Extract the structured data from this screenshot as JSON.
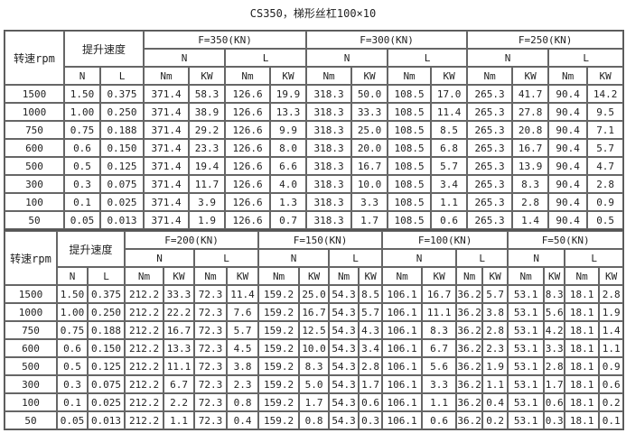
{
  "title": "CS350，梯形丝杠100×10",
  "header": {
    "rpm": "转速rpm",
    "speed": "提升速度",
    "N": "N",
    "L": "L",
    "Nm": "Nm",
    "KW": "KW"
  },
  "tables": [
    {
      "groups": [
        "F=350(KN)",
        "F=300(KN)",
        "F=250(KN)"
      ],
      "rows": [
        [
          "1500",
          "1.50",
          "0.375",
          "371.4",
          "58.3",
          "126.6",
          "19.9",
          "318.3",
          "50.0",
          "108.5",
          "17.0",
          "265.3",
          "41.7",
          "90.4",
          "14.2"
        ],
        [
          "1000",
          "1.00",
          "0.250",
          "371.4",
          "38.9",
          "126.6",
          "13.3",
          "318.3",
          "33.3",
          "108.5",
          "11.4",
          "265.3",
          "27.8",
          "90.4",
          "9.5"
        ],
        [
          "750",
          "0.75",
          "0.188",
          "371.4",
          "29.2",
          "126.6",
          "9.9",
          "318.3",
          "25.0",
          "108.5",
          "8.5",
          "265.3",
          "20.8",
          "90.4",
          "7.1"
        ],
        [
          "600",
          "0.6",
          "0.150",
          "371.4",
          "23.3",
          "126.6",
          "8.0",
          "318.3",
          "20.0",
          "108.5",
          "6.8",
          "265.3",
          "16.7",
          "90.4",
          "5.7"
        ],
        [
          "500",
          "0.5",
          "0.125",
          "371.4",
          "19.4",
          "126.6",
          "6.6",
          "318.3",
          "16.7",
          "108.5",
          "5.7",
          "265.3",
          "13.9",
          "90.4",
          "4.7"
        ],
        [
          "300",
          "0.3",
          "0.075",
          "371.4",
          "11.7",
          "126.6",
          "4.0",
          "318.3",
          "10.0",
          "108.5",
          "3.4",
          "265.3",
          "8.3",
          "90.4",
          "2.8"
        ],
        [
          "100",
          "0.1",
          "0.025",
          "371.4",
          "3.9",
          "126.6",
          "1.3",
          "318.3",
          "3.3",
          "108.5",
          "1.1",
          "265.3",
          "2.8",
          "90.4",
          "0.9"
        ],
        [
          "50",
          "0.05",
          "0.013",
          "371.4",
          "1.9",
          "126.6",
          "0.7",
          "318.3",
          "1.7",
          "108.5",
          "0.6",
          "265.3",
          "1.4",
          "90.4",
          "0.5"
        ]
      ]
    },
    {
      "groups": [
        "F=200(KN)",
        "F=150(KN)",
        "F=100(KN)",
        "F=50(KN)"
      ],
      "rows": [
        [
          "1500",
          "1.50",
          "0.375",
          "212.2",
          "33.3",
          "72.3",
          "11.4",
          "159.2",
          "25.0",
          "54.3",
          "8.5",
          "106.1",
          "16.7",
          "36.2",
          "5.7",
          "53.1",
          "8.3",
          "18.1",
          "2.8"
        ],
        [
          "1000",
          "1.00",
          "0.250",
          "212.2",
          "22.2",
          "72.3",
          "7.6",
          "159.2",
          "16.7",
          "54.3",
          "5.7",
          "106.1",
          "11.1",
          "36.2",
          "3.8",
          "53.1",
          "5.6",
          "18.1",
          "1.9"
        ],
        [
          "750",
          "0.75",
          "0.188",
          "212.2",
          "16.7",
          "72.3",
          "5.7",
          "159.2",
          "12.5",
          "54.3",
          "4.3",
          "106.1",
          "8.3",
          "36.2",
          "2.8",
          "53.1",
          "4.2",
          "18.1",
          "1.4"
        ],
        [
          "600",
          "0.6",
          "0.150",
          "212.2",
          "13.3",
          "72.3",
          "4.5",
          "159.2",
          "10.0",
          "54.3",
          "3.4",
          "106.1",
          "6.7",
          "36.2",
          "2.3",
          "53.1",
          "3.3",
          "18.1",
          "1.1"
        ],
        [
          "500",
          "0.5",
          "0.125",
          "212.2",
          "11.1",
          "72.3",
          "3.8",
          "159.2",
          "8.3",
          "54.3",
          "2.8",
          "106.1",
          "5.6",
          "36.2",
          "1.9",
          "53.1",
          "2.8",
          "18.1",
          "0.9"
        ],
        [
          "300",
          "0.3",
          "0.075",
          "212.2",
          "6.7",
          "72.3",
          "2.3",
          "159.2",
          "5.0",
          "54.3",
          "1.7",
          "106.1",
          "3.3",
          "36.2",
          "1.1",
          "53.1",
          "1.7",
          "18.1",
          "0.6"
        ],
        [
          "100",
          "0.1",
          "0.025",
          "212.2",
          "2.2",
          "72.3",
          "0.8",
          "159.2",
          "1.7",
          "54.3",
          "0.6",
          "106.1",
          "1.1",
          "36.2",
          "0.4",
          "53.1",
          "0.6",
          "18.1",
          "0.2"
        ],
        [
          "50",
          "0.05",
          "0.013",
          "212.2",
          "1.1",
          "72.3",
          "0.4",
          "159.2",
          "0.8",
          "54.3",
          "0.3",
          "106.1",
          "0.6",
          "36.2",
          "0.2",
          "53.1",
          "0.3",
          "18.1",
          "0.1"
        ]
      ]
    }
  ]
}
